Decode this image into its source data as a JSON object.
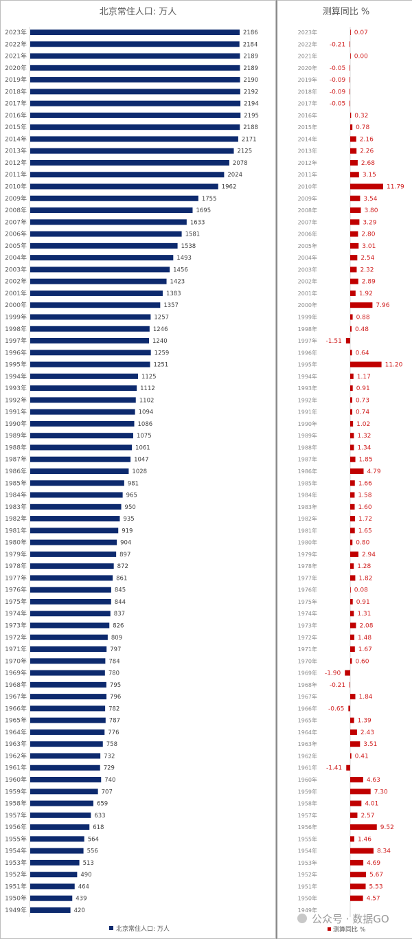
{
  "chart_data": [
    {
      "type": "bar",
      "orientation": "horizontal",
      "title": "北京常住人口: 万人",
      "legend": "北京常住人口: 万人",
      "legend_position": "bottom",
      "color": "#0d2a6e",
      "categories": [
        "2023年",
        "2022年",
        "2021年",
        "2020年",
        "2019年",
        "2018年",
        "2017年",
        "2016年",
        "2015年",
        "2014年",
        "2013年",
        "2012年",
        "2011年",
        "2010年",
        "2009年",
        "2008年",
        "2007年",
        "2006年",
        "2005年",
        "2004年",
        "2003年",
        "2002年",
        "2001年",
        "2000年",
        "1999年",
        "1998年",
        "1997年",
        "1996年",
        "1995年",
        "1994年",
        "1993年",
        "1992年",
        "1991年",
        "1990年",
        "1989年",
        "1988年",
        "1987年",
        "1986年",
        "1985年",
        "1984年",
        "1983年",
        "1982年",
        "1981年",
        "1980年",
        "1979年",
        "1978年",
        "1977年",
        "1976年",
        "1975年",
        "1974年",
        "1973年",
        "1972年",
        "1971年",
        "1970年",
        "1969年",
        "1968年",
        "1967年",
        "1966年",
        "1965年",
        "1964年",
        "1963年",
        "1962年",
        "1961年",
        "1960年",
        "1959年",
        "1958年",
        "1957年",
        "1956年",
        "1955年",
        "1954年",
        "1953年",
        "1952年",
        "1951年",
        "1950年",
        "1949年"
      ],
      "values": [
        2186,
        2184,
        2189,
        2189,
        2190,
        2192,
        2194,
        2195,
        2188,
        2171,
        2125,
        2078,
        2024,
        1962,
        1755,
        1695,
        1633,
        1581,
        1538,
        1493,
        1456,
        1423,
        1383,
        1357,
        1257,
        1246,
        1240,
        1259,
        1251,
        1125,
        1112,
        1102,
        1094,
        1086,
        1075,
        1061,
        1047,
        1028,
        981,
        965,
        950,
        935,
        919,
        904,
        897,
        872,
        861,
        845,
        844,
        837,
        826,
        809,
        797,
        784,
        780,
        795,
        796,
        782,
        787,
        776,
        758,
        732,
        729,
        740,
        707,
        659,
        633,
        618,
        564,
        556,
        513,
        490,
        464,
        439,
        420
      ],
      "xlim": [
        0,
        2200
      ]
    },
    {
      "type": "bar",
      "orientation": "horizontal",
      "title": "测算同比 %",
      "legend": "测算同比 %",
      "legend_position": "bottom",
      "color": "#c00000",
      "values": [
        0.07,
        -0.21,
        0.0,
        -0.05,
        -0.09,
        -0.09,
        -0.05,
        0.32,
        0.78,
        2.16,
        2.26,
        2.68,
        3.15,
        11.79,
        3.54,
        3.8,
        3.29,
        2.8,
        3.01,
        2.54,
        2.32,
        2.89,
        1.92,
        7.96,
        0.88,
        0.48,
        -1.51,
        0.64,
        11.2,
        1.17,
        0.91,
        0.73,
        0.74,
        1.02,
        1.32,
        1.34,
        1.85,
        4.79,
        1.66,
        1.58,
        1.6,
        1.72,
        1.65,
        0.8,
        2.94,
        1.28,
        1.82,
        0.08,
        0.91,
        1.31,
        2.08,
        1.48,
        1.67,
        0.6,
        -1.9,
        -0.21,
        1.84,
        -0.65,
        1.39,
        2.43,
        3.51,
        0.41,
        -1.41,
        4.63,
        7.3,
        4.01,
        2.57,
        9.52,
        1.46,
        8.34,
        4.69,
        5.67,
        5.53,
        4.57,
        null
      ],
      "xlim": [
        -2,
        12
      ]
    }
  ],
  "watermark": "公众号 · 数据GO"
}
